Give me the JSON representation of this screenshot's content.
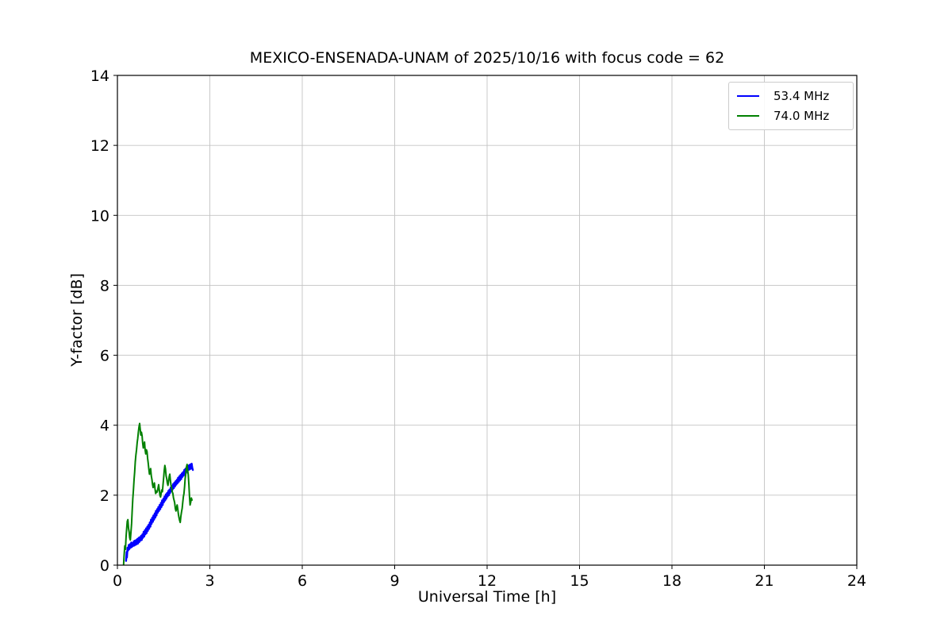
{
  "chart_data": {
    "type": "line",
    "title": "MEXICO-ENSENADA-UNAM of 2025/10/16 with focus code = 62",
    "xlabel": "Universal Time [h]",
    "ylabel": "Y-factor [dB]",
    "xlim": [
      0,
      24
    ],
    "ylim": [
      0,
      14
    ],
    "xticks": [
      0,
      3,
      6,
      9,
      12,
      15,
      18,
      21,
      24
    ],
    "yticks": [
      0,
      2,
      4,
      6,
      8,
      10,
      12,
      14
    ],
    "grid": true,
    "grid_color": "#c3c3c3",
    "legend_position": "upper right",
    "series": [
      {
        "name": "53.4 MHz",
        "color": "#0000ff",
        "linewidth": 2.4,
        "points": [
          [
            0.28,
            0.12
          ],
          [
            0.3,
            0.38
          ],
          [
            0.31,
            0.22
          ],
          [
            0.33,
            0.5
          ],
          [
            0.35,
            0.42
          ],
          [
            0.37,
            0.58
          ],
          [
            0.39,
            0.46
          ],
          [
            0.41,
            0.6
          ],
          [
            0.43,
            0.5
          ],
          [
            0.45,
            0.65
          ],
          [
            0.47,
            0.52
          ],
          [
            0.49,
            0.63
          ],
          [
            0.51,
            0.55
          ],
          [
            0.53,
            0.68
          ],
          [
            0.55,
            0.56
          ],
          [
            0.57,
            0.7
          ],
          [
            0.59,
            0.58
          ],
          [
            0.61,
            0.72
          ],
          [
            0.63,
            0.6
          ],
          [
            0.65,
            0.75
          ],
          [
            0.67,
            0.62
          ],
          [
            0.69,
            0.78
          ],
          [
            0.71,
            0.66
          ],
          [
            0.73,
            0.8
          ],
          [
            0.75,
            0.7
          ],
          [
            0.77,
            0.84
          ],
          [
            0.79,
            0.72
          ],
          [
            0.81,
            0.88
          ],
          [
            0.83,
            0.78
          ],
          [
            0.85,
            0.95
          ],
          [
            0.87,
            0.82
          ],
          [
            0.89,
            1.0
          ],
          [
            0.91,
            0.88
          ],
          [
            0.93,
            1.05
          ],
          [
            0.95,
            0.92
          ],
          [
            0.97,
            1.1
          ],
          [
            0.99,
            0.98
          ],
          [
            1.01,
            1.15
          ],
          [
            1.03,
            1.04
          ],
          [
            1.05,
            1.22
          ],
          [
            1.07,
            1.1
          ],
          [
            1.09,
            1.3
          ],
          [
            1.11,
            1.18
          ],
          [
            1.13,
            1.36
          ],
          [
            1.15,
            1.24
          ],
          [
            1.17,
            1.42
          ],
          [
            1.19,
            1.3
          ],
          [
            1.21,
            1.48
          ],
          [
            1.23,
            1.36
          ],
          [
            1.25,
            1.55
          ],
          [
            1.27,
            1.42
          ],
          [
            1.29,
            1.6
          ],
          [
            1.31,
            1.5
          ],
          [
            1.33,
            1.66
          ],
          [
            1.35,
            1.55
          ],
          [
            1.37,
            1.72
          ],
          [
            1.39,
            1.6
          ],
          [
            1.41,
            1.78
          ],
          [
            1.43,
            1.66
          ],
          [
            1.45,
            1.85
          ],
          [
            1.47,
            1.72
          ],
          [
            1.49,
            1.9
          ],
          [
            1.51,
            1.8
          ],
          [
            1.53,
            1.96
          ],
          [
            1.55,
            1.85
          ],
          [
            1.57,
            2.02
          ],
          [
            1.59,
            1.9
          ],
          [
            1.61,
            2.06
          ],
          [
            1.63,
            1.96
          ],
          [
            1.65,
            2.12
          ],
          [
            1.67,
            2.0
          ],
          [
            1.69,
            2.16
          ],
          [
            1.71,
            2.06
          ],
          [
            1.73,
            2.22
          ],
          [
            1.75,
            2.12
          ],
          [
            1.77,
            2.26
          ],
          [
            1.79,
            2.16
          ],
          [
            1.81,
            2.32
          ],
          [
            1.83,
            2.2
          ],
          [
            1.85,
            2.36
          ],
          [
            1.87,
            2.25
          ],
          [
            1.89,
            2.4
          ],
          [
            1.91,
            2.3
          ],
          [
            1.93,
            2.44
          ],
          [
            1.95,
            2.34
          ],
          [
            1.97,
            2.5
          ],
          [
            1.99,
            2.38
          ],
          [
            2.01,
            2.54
          ],
          [
            2.03,
            2.42
          ],
          [
            2.05,
            2.58
          ],
          [
            2.07,
            2.46
          ],
          [
            2.09,
            2.62
          ],
          [
            2.11,
            2.52
          ],
          [
            2.13,
            2.66
          ],
          [
            2.15,
            2.56
          ],
          [
            2.17,
            2.72
          ],
          [
            2.19,
            2.6
          ],
          [
            2.21,
            2.76
          ],
          [
            2.23,
            2.64
          ],
          [
            2.25,
            2.8
          ],
          [
            2.27,
            2.68
          ],
          [
            2.29,
            2.84
          ],
          [
            2.31,
            2.72
          ],
          [
            2.33,
            2.86
          ],
          [
            2.35,
            2.74
          ],
          [
            2.37,
            2.88
          ],
          [
            2.39,
            2.76
          ],
          [
            2.41,
            2.9
          ],
          [
            2.43,
            2.78
          ],
          [
            2.45,
            2.72
          ]
        ]
      },
      {
        "name": "74.0 MHz",
        "color": "#008000",
        "linewidth": 2.0,
        "points": [
          [
            0.2,
            0.02
          ],
          [
            0.22,
            0.3
          ],
          [
            0.24,
            0.55
          ],
          [
            0.26,
            0.45
          ],
          [
            0.28,
            0.8
          ],
          [
            0.3,
            1.05
          ],
          [
            0.32,
            1.25
          ],
          [
            0.34,
            1.3
          ],
          [
            0.36,
            1.05
          ],
          [
            0.38,
            0.95
          ],
          [
            0.4,
            0.78
          ],
          [
            0.42,
            0.72
          ],
          [
            0.44,
            0.95
          ],
          [
            0.46,
            1.2
          ],
          [
            0.48,
            1.55
          ],
          [
            0.5,
            1.9
          ],
          [
            0.52,
            2.15
          ],
          [
            0.54,
            2.45
          ],
          [
            0.56,
            2.65
          ],
          [
            0.58,
            2.95
          ],
          [
            0.6,
            3.15
          ],
          [
            0.62,
            3.3
          ],
          [
            0.64,
            3.5
          ],
          [
            0.66,
            3.62
          ],
          [
            0.68,
            3.8
          ],
          [
            0.7,
            3.95
          ],
          [
            0.72,
            4.05
          ],
          [
            0.74,
            3.9
          ],
          [
            0.76,
            3.72
          ],
          [
            0.78,
            3.8
          ],
          [
            0.8,
            3.7
          ],
          [
            0.82,
            3.5
          ],
          [
            0.84,
            3.35
          ],
          [
            0.86,
            3.45
          ],
          [
            0.88,
            3.52
          ],
          [
            0.9,
            3.3
          ],
          [
            0.92,
            3.18
          ],
          [
            0.94,
            3.3
          ],
          [
            0.96,
            3.25
          ],
          [
            0.98,
            3.05
          ],
          [
            1.0,
            2.92
          ],
          [
            1.02,
            2.75
          ],
          [
            1.04,
            2.6
          ],
          [
            1.06,
            2.7
          ],
          [
            1.08,
            2.76
          ],
          [
            1.1,
            2.55
          ],
          [
            1.12,
            2.45
          ],
          [
            1.14,
            2.3
          ],
          [
            1.16,
            2.22
          ],
          [
            1.18,
            2.3
          ],
          [
            1.2,
            2.35
          ],
          [
            1.22,
            2.18
          ],
          [
            1.24,
            2.05
          ],
          [
            1.26,
            2.12
          ],
          [
            1.28,
            2.08
          ],
          [
            1.3,
            2.12
          ],
          [
            1.32,
            2.22
          ],
          [
            1.34,
            2.3
          ],
          [
            1.36,
            2.15
          ],
          [
            1.38,
            2.0
          ],
          [
            1.4,
            1.95
          ],
          [
            1.42,
            2.05
          ],
          [
            1.44,
            2.15
          ],
          [
            1.46,
            2.1
          ],
          [
            1.48,
            2.3
          ],
          [
            1.5,
            2.5
          ],
          [
            1.52,
            2.7
          ],
          [
            1.54,
            2.85
          ],
          [
            1.56,
            2.75
          ],
          [
            1.58,
            2.55
          ],
          [
            1.6,
            2.48
          ],
          [
            1.62,
            2.35
          ],
          [
            1.64,
            2.28
          ],
          [
            1.66,
            2.4
          ],
          [
            1.68,
            2.52
          ],
          [
            1.7,
            2.6
          ],
          [
            1.72,
            2.42
          ],
          [
            1.74,
            2.28
          ],
          [
            1.76,
            2.22
          ],
          [
            1.78,
            2.1
          ],
          [
            1.8,
            2.05
          ],
          [
            1.82,
            1.92
          ],
          [
            1.84,
            1.85
          ],
          [
            1.86,
            1.78
          ],
          [
            1.88,
            1.62
          ],
          [
            1.9,
            1.55
          ],
          [
            1.92,
            1.65
          ],
          [
            1.94,
            1.72
          ],
          [
            1.96,
            1.6
          ],
          [
            1.98,
            1.45
          ],
          [
            2.0,
            1.35
          ],
          [
            2.02,
            1.28
          ],
          [
            2.04,
            1.22
          ],
          [
            2.06,
            1.4
          ],
          [
            2.08,
            1.52
          ],
          [
            2.1,
            1.62
          ],
          [
            2.12,
            1.78
          ],
          [
            2.14,
            1.95
          ],
          [
            2.16,
            2.05
          ],
          [
            2.18,
            2.25
          ],
          [
            2.2,
            2.48
          ],
          [
            2.22,
            2.62
          ],
          [
            2.24,
            2.8
          ],
          [
            2.26,
            2.88
          ],
          [
            2.28,
            2.72
          ],
          [
            2.3,
            2.58
          ],
          [
            2.32,
            2.3
          ],
          [
            2.34,
            1.95
          ],
          [
            2.36,
            1.72
          ],
          [
            2.38,
            1.8
          ],
          [
            2.4,
            1.92
          ],
          [
            2.42,
            1.86
          ]
        ]
      }
    ]
  }
}
